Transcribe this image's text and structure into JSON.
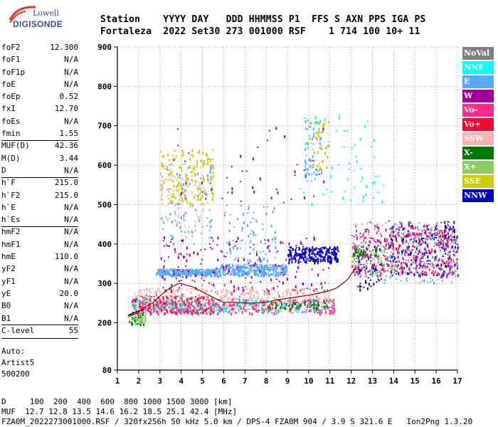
{
  "logo": {
    "line1": "Lowell",
    "line2": "DIGISONDE"
  },
  "header": {
    "labels": "Station    YYYY DAY   DDD HHMMSS P1  FFS S AXN PPS IGA PS",
    "values": "Fortaleza  2022 Set30 273 001000 RSF    1 714 100 10+ 11"
  },
  "params": [
    {
      "name": "foF2",
      "value": "12.300"
    },
    {
      "name": "foF1",
      "value": "N/A"
    },
    {
      "name": "foF1p",
      "value": "N/A"
    },
    {
      "name": "foE",
      "value": "N/A"
    },
    {
      "name": "foEp",
      "value": "0.52"
    },
    {
      "name": "fxI",
      "value": "12.70"
    },
    {
      "name": "foEs",
      "value": "N/A"
    },
    {
      "name": "fmin",
      "value": "1.55"
    },
    {
      "name": "MUF(D)",
      "value": "42.36"
    },
    {
      "name": "M(D)",
      "value": "3.44"
    },
    {
      "name": "D",
      "value": "N/A"
    },
    {
      "name": "h`F",
      "value": "215.0"
    },
    {
      "name": "h`F2",
      "value": "215.0"
    },
    {
      "name": "h`E",
      "value": "N/A"
    },
    {
      "name": "h`Es",
      "value": "N/A"
    },
    {
      "name": "hmF2",
      "value": "N/A"
    },
    {
      "name": "hmF1",
      "value": "N/A"
    },
    {
      "name": "hmE",
      "value": "110.0"
    },
    {
      "name": "yF2",
      "value": "N/A"
    },
    {
      "name": "yF1",
      "value": "N/A"
    },
    {
      "name": "yE",
      "value": "20.0"
    },
    {
      "name": "B0",
      "value": "N/A"
    },
    {
      "name": "B1",
      "value": "N/A"
    },
    {
      "name": "C-level",
      "value": "55"
    }
  ],
  "auto": [
    "Auto:",
    "Artist5",
    "500200"
  ],
  "legend": [
    {
      "label": "NoVal",
      "color": "#808080"
    },
    {
      "label": "NNE",
      "color": "#00ffff"
    },
    {
      "label": "E",
      "color": "#55aaff"
    },
    {
      "label": "W",
      "color": "#a000a0"
    },
    {
      "label": "Vo-",
      "color": "#ff2a8a"
    },
    {
      "label": "Vo+",
      "color": "#ff0033"
    },
    {
      "label": "SSW",
      "color": "#ffb0b0"
    },
    {
      "label": "X-",
      "color": "#007700"
    },
    {
      "label": "X+",
      "color": "#88cc66"
    },
    {
      "label": "SSE",
      "color": "#cccc00"
    },
    {
      "label": "NNW",
      "color": "#0000cc"
    }
  ],
  "footer": {
    "line1": "D     100  200  400  600  800 1000 1500 3000 [km]",
    "line2": "MUF  12.7 12.8 13.5 14.6 16.2 18.5 25.1 42.4 [MHz]",
    "line3": "FZA0M_2022273001000.RSF / 320fx256h 50 kHz 5.0 km / DPS-4 FZA0M 904 / 3.9 S 321.6 E   Ion2Png 1.3.20"
  },
  "chart_data": {
    "type": "scatter",
    "xlim": [
      1,
      17
    ],
    "ylim": [
      80,
      900
    ],
    "x_ticks": [
      1,
      2,
      3,
      4,
      5,
      6,
      7,
      8,
      9,
      10,
      11,
      12,
      13,
      14,
      15,
      16,
      17
    ],
    "y_ticks": [
      80,
      200,
      300,
      400,
      500,
      600,
      700,
      800,
      900
    ],
    "grid": true,
    "legend_position": "right",
    "trace": {
      "x": [
        1.6,
        1.8,
        2.0,
        2.3,
        2.7,
        3.0,
        3.3,
        3.6,
        3.8,
        4.0,
        4.2,
        4.5,
        4.8,
        5.0,
        5.3,
        5.6,
        6.0,
        6.5,
        7.0,
        7.5,
        8.0,
        8.5,
        9.0,
        9.5,
        10.0,
        10.5,
        11.0,
        11.3,
        11.5,
        11.7,
        11.9,
        12.0,
        12.1,
        12.2
      ],
      "y": [
        218,
        222,
        228,
        240,
        252,
        268,
        282,
        292,
        298,
        300,
        296,
        292,
        284,
        278,
        270,
        262,
        252,
        252,
        250,
        250,
        252,
        258,
        262,
        266,
        270,
        275,
        282,
        288,
        296,
        304,
        314,
        324,
        330,
        340
      ]
    },
    "trace2": {
      "x": [
        1.5,
        1.7,
        1.9,
        2.1,
        2.3
      ],
      "y": [
        218,
        224,
        228,
        232,
        234
      ]
    },
    "clusters": [
      {
        "color": "#55aaff",
        "x": [
          2.8,
          5.8
        ],
        "y": [
          322,
          338
        ],
        "n": 320
      },
      {
        "color": "#55aaff",
        "x": [
          5.8,
          9.0
        ],
        "y": [
          322,
          350
        ],
        "n": 320
      },
      {
        "color": "#55aaff",
        "x": [
          6.0,
          8.5
        ],
        "y": [
          360,
          500
        ],
        "n": 80
      },
      {
        "color": "#55aaff",
        "x": [
          3.0,
          5.5
        ],
        "y": [
          400,
          620
        ],
        "n": 100
      },
      {
        "color": "#55aaff",
        "x": [
          9.8,
          10.6
        ],
        "y": [
          560,
          720
        ],
        "n": 60
      },
      {
        "color": "#55aaff",
        "x": [
          13.5,
          17.0
        ],
        "y": [
          300,
          460
        ],
        "n": 160
      },
      {
        "color": "#0000cc",
        "x": [
          9.0,
          11.4
        ],
        "y": [
          355,
          395
        ],
        "n": 240
      },
      {
        "color": "#0000cc",
        "x": [
          13.8,
          17.0
        ],
        "y": [
          320,
          450
        ],
        "n": 180
      },
      {
        "color": "#0000cc",
        "x": [
          12.2,
          13.4
        ],
        "y": [
          280,
          400
        ],
        "n": 70
      },
      {
        "color": "#cccc00",
        "x": [
          3.0,
          5.5
        ],
        "y": [
          500,
          640
        ],
        "n": 180
      },
      {
        "color": "#cccc00",
        "x": [
          10.0,
          11.0
        ],
        "y": [
          580,
          720
        ],
        "n": 40
      },
      {
        "color": "#ffb0b0",
        "x": [
          1.8,
          11.0
        ],
        "y": [
          230,
          290
        ],
        "n": 520
      },
      {
        "color": "#ffb0b0",
        "x": [
          3.0,
          5.0
        ],
        "y": [
          420,
          580
        ],
        "n": 60
      },
      {
        "color": "#ffb0b0",
        "x": [
          12.0,
          17.0
        ],
        "y": [
          320,
          460
        ],
        "n": 120
      },
      {
        "color": "#ff0033",
        "x": [
          1.7,
          5.5
        ],
        "y": [
          225,
          270
        ],
        "n": 200
      },
      {
        "color": "#ff0033",
        "x": [
          12.0,
          17.0
        ],
        "y": [
          320,
          450
        ],
        "n": 140
      },
      {
        "color": "#ff2a8a",
        "x": [
          1.6,
          11.2
        ],
        "y": [
          225,
          262
        ],
        "n": 320
      },
      {
        "color": "#ff2a8a",
        "x": [
          12.0,
          17.0
        ],
        "y": [
          320,
          450
        ],
        "n": 140
      },
      {
        "color": "#a000a0",
        "x": [
          3.0,
          11.0
        ],
        "y": [
          280,
          420
        ],
        "n": 180
      },
      {
        "color": "#a000a0",
        "x": [
          12.2,
          17.0
        ],
        "y": [
          320,
          460
        ],
        "n": 120
      },
      {
        "color": "#a000a0",
        "x": [
          3.5,
          10.8
        ],
        "y": [
          500,
          700
        ],
        "n": 50
      },
      {
        "color": "#00ffff",
        "x": [
          1.5,
          11.0
        ],
        "y": [
          228,
          262
        ],
        "n": 160
      },
      {
        "color": "#00ffff",
        "x": [
          9.5,
          13.5
        ],
        "y": [
          500,
          730
        ],
        "n": 60
      },
      {
        "color": "#007700",
        "x": [
          1.5,
          2.3
        ],
        "y": [
          198,
          226
        ],
        "n": 40
      },
      {
        "color": "#007700",
        "x": [
          8.0,
          11.0
        ],
        "y": [
          238,
          260
        ],
        "n": 60
      },
      {
        "color": "#007700",
        "x": [
          12.0,
          13.2
        ],
        "y": [
          370,
          395
        ],
        "n": 40
      },
      {
        "color": "#88cc66",
        "x": [
          1.5,
          2.3
        ],
        "y": [
          198,
          226
        ],
        "n": 40
      },
      {
        "color": "#88cc66",
        "x": [
          12.0,
          14.0
        ],
        "y": [
          320,
          400
        ],
        "n": 40
      },
      {
        "color": "#808080",
        "x": [
          1.6,
          11.0
        ],
        "y": [
          230,
          300
        ],
        "n": 80
      },
      {
        "color": "#808080",
        "x": [
          12.0,
          17.0
        ],
        "y": [
          320,
          440
        ],
        "n": 60
      }
    ]
  }
}
